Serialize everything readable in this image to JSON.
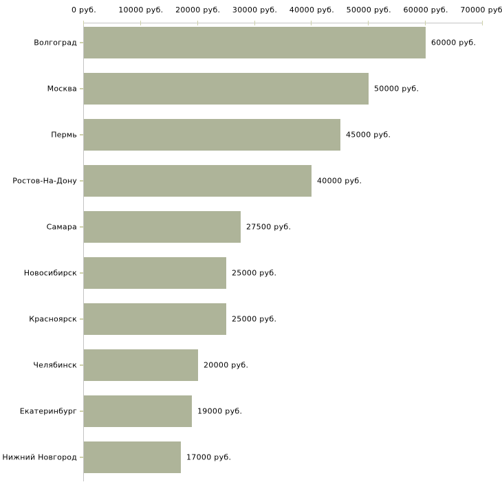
{
  "chart_data": {
    "type": "bar",
    "orientation": "horizontal",
    "title": "",
    "xlabel": "",
    "ylabel": "",
    "categories": [
      "Волгоград",
      "Москва",
      "Пермь",
      "Ростов-На-Дону",
      "Самара",
      "Новосибирск",
      "Красноярск",
      "Челябинск",
      "Екатеринбург",
      "Нижний Новгород"
    ],
    "values": [
      60000,
      50000,
      45000,
      40000,
      27500,
      25000,
      25000,
      20000,
      19000,
      17000
    ],
    "value_labels": [
      "60000 руб.",
      "50000 руб.",
      "45000 руб.",
      "40000 руб.",
      "27500 руб.",
      "25000 руб.",
      "25000 руб.",
      "20000 руб.",
      "19000 руб.",
      "17000 руб."
    ],
    "xlim": [
      0,
      70000
    ],
    "x_ticks": [
      0,
      10000,
      20000,
      30000,
      40000,
      50000,
      60000,
      70000
    ],
    "x_tick_labels": [
      "0 руб.",
      "10000 руб.",
      "20000 руб.",
      "30000 руб.",
      "40000 руб.",
      "50000 руб.",
      "60000 руб.",
      "70000 руб."
    ],
    "grid": false,
    "legend": null,
    "axis_position": "top-left",
    "colors": {
      "bar": "#aeb499",
      "axis_line": "#c3c3c3",
      "tick_mark": "#cdd0a9",
      "text": "#000000",
      "background": "#ffffff"
    }
  }
}
